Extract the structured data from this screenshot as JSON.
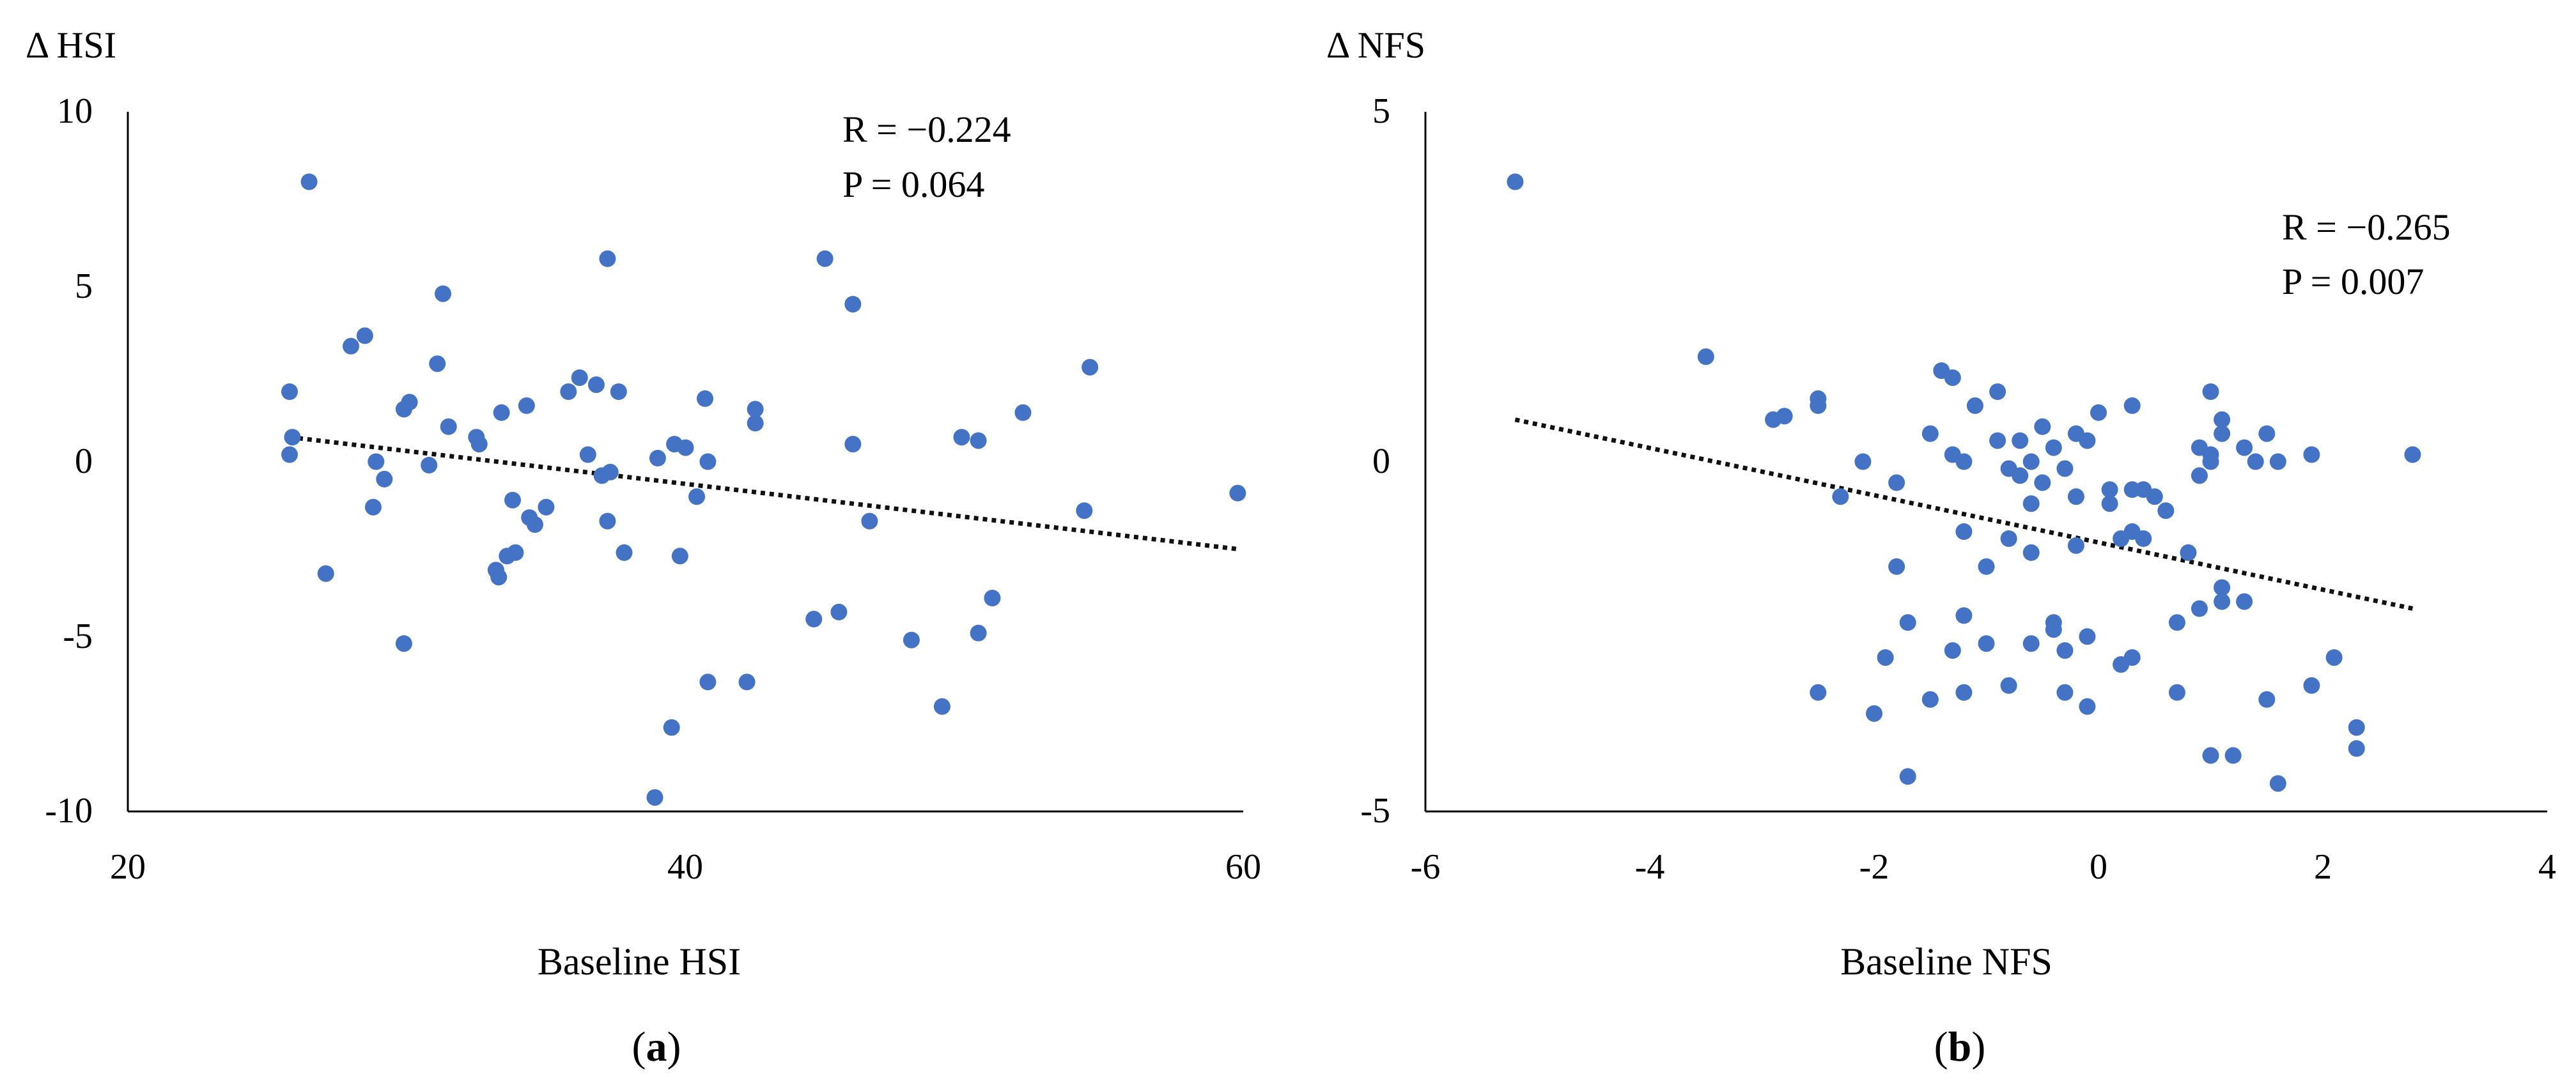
{
  "figure_labels": [
    {
      "open": "(",
      "letter": "a",
      "close": ")"
    },
    {
      "open": "(",
      "letter": "b",
      "close": ")"
    }
  ],
  "chart_data": [
    {
      "type": "scatter",
      "title": "",
      "panel": "a",
      "ylabel": "Δ HSI",
      "xlabel": "Baseline HSI",
      "xlim": [
        20,
        60
      ],
      "ylim": [
        -10,
        10
      ],
      "xticks": [
        20,
        40,
        60
      ],
      "yticks": [
        10,
        5,
        0,
        -5,
        -10
      ],
      "xtick_labels": [
        "20",
        "40",
        "60"
      ],
      "ytick_labels": [
        "10",
        "5",
        "0",
        "-5",
        "-10"
      ],
      "grid": false,
      "annotations": [
        "R = −0.224",
        "P = 0.064"
      ],
      "annotation_position": "top-right",
      "point_color": "#4472c4",
      "trendline": {
        "style": "dotted",
        "color": "#111111",
        "x": [
          25.8,
          59.8
        ],
        "y": [
          0.7,
          -2.5
        ]
      },
      "points": [
        [
          26.5,
          8.0
        ],
        [
          25.8,
          2.0
        ],
        [
          25.9,
          0.7
        ],
        [
          25.8,
          0.2
        ],
        [
          27.1,
          -3.2
        ],
        [
          28.0,
          3.3
        ],
        [
          28.5,
          3.6
        ],
        [
          28.8,
          -1.3
        ],
        [
          28.9,
          0.0
        ],
        [
          29.2,
          -0.5
        ],
        [
          29.9,
          -5.2
        ],
        [
          29.9,
          1.5
        ],
        [
          30.1,
          1.7
        ],
        [
          30.8,
          -0.1
        ],
        [
          31.1,
          2.8
        ],
        [
          31.3,
          4.8
        ],
        [
          31.5,
          1.0
        ],
        [
          32.5,
          0.7
        ],
        [
          32.6,
          0.5
        ],
        [
          33.2,
          -3.1
        ],
        [
          33.3,
          -3.3
        ],
        [
          33.4,
          1.4
        ],
        [
          33.6,
          -2.7
        ],
        [
          33.8,
          -1.1
        ],
        [
          33.9,
          -2.6
        ],
        [
          34.3,
          1.6
        ],
        [
          34.4,
          -1.6
        ],
        [
          34.6,
          -1.8
        ],
        [
          35.0,
          -1.3
        ],
        [
          35.8,
          2.0
        ],
        [
          36.2,
          2.4
        ],
        [
          36.5,
          0.2
        ],
        [
          36.8,
          2.2
        ],
        [
          37.0,
          -0.4
        ],
        [
          37.2,
          5.8
        ],
        [
          37.2,
          -1.7
        ],
        [
          37.3,
          -0.3
        ],
        [
          37.6,
          2.0
        ],
        [
          37.8,
          -2.6
        ],
        [
          38.9,
          -9.6
        ],
        [
          39.0,
          0.1
        ],
        [
          39.5,
          -7.6
        ],
        [
          39.6,
          0.5
        ],
        [
          39.8,
          -2.7
        ],
        [
          40.0,
          0.4
        ],
        [
          40.4,
          -1.0
        ],
        [
          40.7,
          1.8
        ],
        [
          40.8,
          0.0
        ],
        [
          40.8,
          -6.3
        ],
        [
          42.2,
          -6.3
        ],
        [
          42.5,
          1.5
        ],
        [
          42.5,
          1.1
        ],
        [
          44.6,
          -4.5
        ],
        [
          45.0,
          5.8
        ],
        [
          45.5,
          -4.3
        ],
        [
          46.0,
          4.5
        ],
        [
          46.0,
          0.5
        ],
        [
          46.6,
          -1.7
        ],
        [
          48.1,
          -5.1
        ],
        [
          49.2,
          -7.0
        ],
        [
          49.9,
          0.7
        ],
        [
          50.5,
          -4.9
        ],
        [
          50.5,
          0.6
        ],
        [
          51.0,
          -3.9
        ],
        [
          52.1,
          1.4
        ],
        [
          54.3,
          -1.4
        ],
        [
          54.5,
          2.7
        ],
        [
          59.8,
          -0.9
        ]
      ]
    },
    {
      "type": "scatter",
      "title": "",
      "panel": "b",
      "ylabel": "Δ NFS",
      "xlabel": "Baseline NFS",
      "xlim": [
        -6,
        4
      ],
      "ylim": [
        -5,
        5
      ],
      "xticks": [
        -6,
        -4,
        -2,
        0,
        2,
        4
      ],
      "yticks": [
        5,
        0,
        -5
      ],
      "xtick_labels": [
        "-6",
        "-4",
        "-2",
        "0",
        "2",
        "4"
      ],
      "ytick_labels": [
        "5",
        "0",
        "-5"
      ],
      "grid": false,
      "annotations": [
        "R = −0.265",
        "P = 0.007"
      ],
      "annotation_position": "top-right",
      "point_color": "#4472c4",
      "trendline": {
        "style": "dotted",
        "color": "#111111",
        "x": [
          -5.2,
          2.8
        ],
        "y": [
          0.6,
          -2.1
        ]
      },
      "points": [
        [
          -5.2,
          4.0
        ],
        [
          -3.5,
          1.5
        ],
        [
          -2.9,
          0.6
        ],
        [
          -2.8,
          0.65
        ],
        [
          -2.5,
          0.8
        ],
        [
          -2.5,
          0.9
        ],
        [
          -2.3,
          -0.5
        ],
        [
          -2.1,
          0.0
        ],
        [
          -2.5,
          -3.3
        ],
        [
          -2.0,
          -3.6
        ],
        [
          -1.9,
          -2.8
        ],
        [
          -1.8,
          -0.3
        ],
        [
          -1.8,
          -1.5
        ],
        [
          -1.7,
          -2.3
        ],
        [
          -1.7,
          -4.5
        ],
        [
          -1.5,
          0.4
        ],
        [
          -1.5,
          -3.4
        ],
        [
          -1.4,
          1.3
        ],
        [
          -1.3,
          1.2
        ],
        [
          -1.3,
          0.1
        ],
        [
          -1.2,
          0.0
        ],
        [
          -1.2,
          -1.0
        ],
        [
          -1.2,
          -2.2
        ],
        [
          -1.2,
          -3.3
        ],
        [
          -1.3,
          -2.7
        ],
        [
          -1.1,
          0.8
        ],
        [
          -1.0,
          -1.5
        ],
        [
          -1.0,
          -2.6
        ],
        [
          -0.9,
          1.0
        ],
        [
          -0.9,
          0.3
        ],
        [
          -0.8,
          -0.1
        ],
        [
          -0.8,
          -1.1
        ],
        [
          -0.8,
          -3.2
        ],
        [
          -0.7,
          0.3
        ],
        [
          -0.7,
          -0.2
        ],
        [
          -0.6,
          0.0
        ],
        [
          -0.6,
          -0.6
        ],
        [
          -0.6,
          -1.3
        ],
        [
          -0.6,
          -2.6
        ],
        [
          -0.5,
          0.5
        ],
        [
          -0.5,
          -0.3
        ],
        [
          -0.4,
          0.2
        ],
        [
          -0.4,
          -2.3
        ],
        [
          -0.4,
          -2.4
        ],
        [
          -0.3,
          -0.1
        ],
        [
          -0.3,
          -2.7
        ],
        [
          -0.3,
          -3.3
        ],
        [
          -0.2,
          0.4
        ],
        [
          -0.2,
          -0.5
        ],
        [
          -0.2,
          -1.2
        ],
        [
          -0.1,
          0.3
        ],
        [
          -0.1,
          -2.5
        ],
        [
          -0.1,
          -3.5
        ],
        [
          0.0,
          0.7
        ],
        [
          0.1,
          -0.4
        ],
        [
          0.1,
          -0.6
        ],
        [
          0.2,
          -1.1
        ],
        [
          0.2,
          -2.9
        ],
        [
          0.3,
          0.8
        ],
        [
          0.3,
          -0.4
        ],
        [
          0.3,
          -1.0
        ],
        [
          0.3,
          -2.8
        ],
        [
          0.4,
          -0.4
        ],
        [
          0.4,
          -1.1
        ],
        [
          0.5,
          -0.5
        ],
        [
          0.6,
          -0.7
        ],
        [
          0.7,
          -2.3
        ],
        [
          0.7,
          -3.3
        ],
        [
          0.8,
          -1.3
        ],
        [
          0.9,
          0.2
        ],
        [
          0.9,
          -0.2
        ],
        [
          0.9,
          -2.1
        ],
        [
          1.0,
          0.0
        ],
        [
          1.0,
          0.1
        ],
        [
          1.0,
          1.0
        ],
        [
          1.0,
          -4.2
        ],
        [
          1.1,
          0.4
        ],
        [
          1.1,
          0.6
        ],
        [
          1.1,
          -1.8
        ],
        [
          1.1,
          -2.0
        ],
        [
          1.2,
          -4.2
        ],
        [
          1.3,
          0.2
        ],
        [
          1.3,
          -2.0
        ],
        [
          1.4,
          0.0
        ],
        [
          1.5,
          0.4
        ],
        [
          1.5,
          -3.4
        ],
        [
          1.6,
          0.0
        ],
        [
          1.6,
          -4.6
        ],
        [
          1.9,
          0.1
        ],
        [
          1.9,
          -3.2
        ],
        [
          2.1,
          -2.8
        ],
        [
          2.3,
          -3.8
        ],
        [
          2.3,
          -4.1
        ],
        [
          2.8,
          0.1
        ]
      ]
    }
  ]
}
